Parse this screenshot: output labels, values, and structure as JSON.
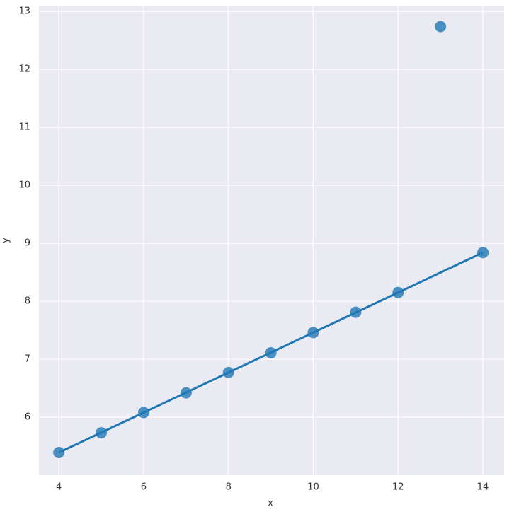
{
  "chart_data": {
    "type": "scatter",
    "x_label": "x",
    "y_label": "y",
    "x": [
      4,
      5,
      6,
      7,
      8,
      9,
      10,
      11,
      12,
      13,
      14
    ],
    "values": [
      5.39,
      5.73,
      6.08,
      6.42,
      6.77,
      7.11,
      7.46,
      7.81,
      8.15,
      12.74,
      8.84
    ],
    "color": "#1f77b4",
    "fit": {
      "x": [
        4,
        14
      ],
      "y": [
        5.39,
        8.84
      ]
    },
    "xlim": [
      3.53,
      14.5
    ],
    "ylim": [
      5.0,
      13.1
    ],
    "xticks": [
      4,
      6,
      8,
      10,
      12,
      14
    ],
    "yticks": [
      6,
      7,
      8,
      9,
      10,
      11,
      12,
      13
    ],
    "grid": true
  }
}
